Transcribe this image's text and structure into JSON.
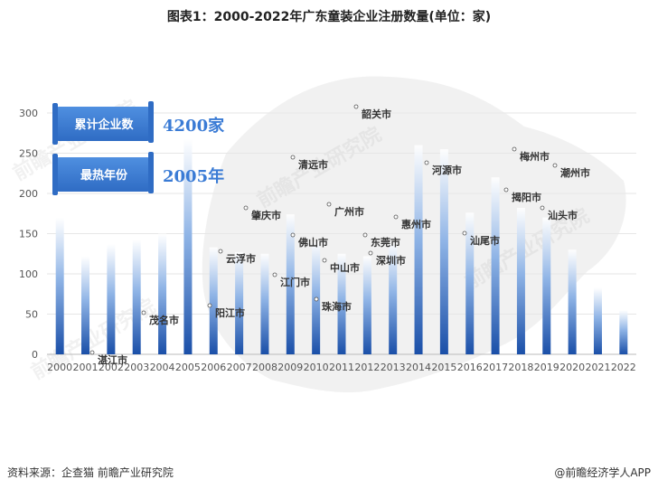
{
  "title": "图表1：2000-2022年广东童装企业注册数量(单位：家)",
  "source": "资料来源：企查猫 前瞻产业研究院",
  "credit": "@前瞻经济学人APP",
  "watermark": "前瞻产业研究院",
  "badges": [
    {
      "label": "累计企业数",
      "value": "4200家"
    },
    {
      "label": "最热年份",
      "value": "2005年"
    }
  ],
  "colors": {
    "bar_top": "#ffffff",
    "bar_bottom": "#1a4fa8",
    "badge": "#3d7fd1",
    "badge_value": "#3a7bd5"
  },
  "chart_data": {
    "type": "bar",
    "title": "图表1：2000-2022年广东童装企业注册数量(单位：家)",
    "categories": [
      "2000",
      "2001",
      "2002",
      "2003",
      "2004",
      "2005",
      "2006",
      "2007",
      "2008",
      "2009",
      "2010",
      "2011",
      "2012",
      "2013",
      "2014",
      "2015",
      "2016",
      "2017",
      "2018",
      "2019",
      "2020",
      "2021",
      "2022"
    ],
    "values": [
      170,
      122,
      137,
      143,
      150,
      268,
      133,
      127,
      125,
      174,
      140,
      125,
      122,
      140,
      260,
      255,
      176,
      220,
      182,
      170,
      130,
      83,
      55
    ],
    "ylim": [
      0,
      300
    ],
    "yticks": [
      0,
      50,
      100,
      150,
      200,
      250,
      300
    ],
    "grid": true,
    "map_labels": [
      "韶关市",
      "梅州市",
      "河源市",
      "清远市",
      "潮州市",
      "揭阳市",
      "肇庆市",
      "广州市",
      "汕头市",
      "惠州市",
      "云浮市",
      "佛山市",
      "东莞市",
      "汕尾市",
      "中山市",
      "深圳市",
      "江门市",
      "珠海市",
      "阳江市",
      "茂名市",
      "湛江市"
    ]
  }
}
